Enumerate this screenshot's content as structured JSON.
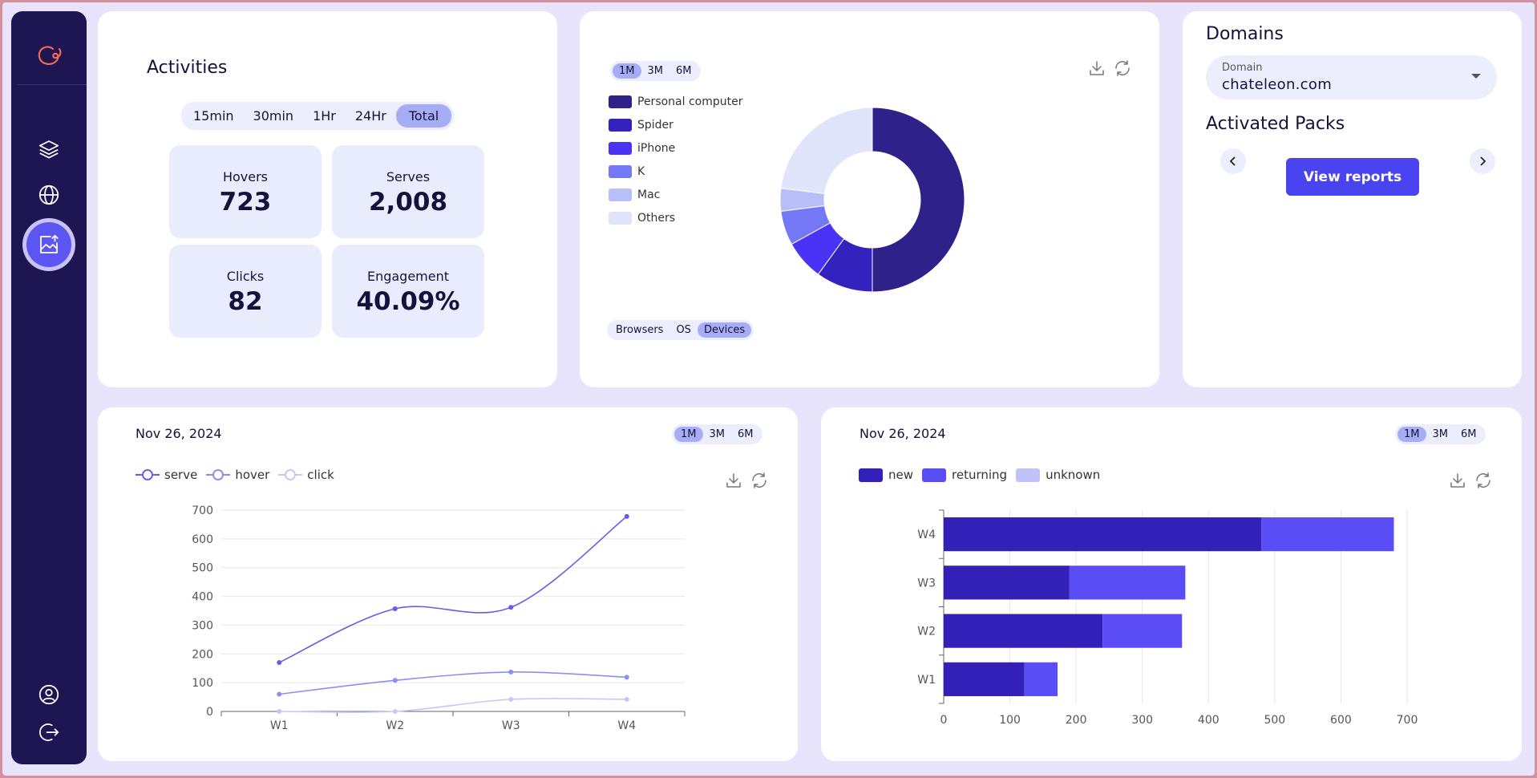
{
  "sidebar": {
    "nav": [
      {
        "icon": "layers-icon"
      },
      {
        "icon": "globe-icon"
      },
      {
        "icon": "image-upload-icon",
        "active": true
      }
    ],
    "bottom": [
      {
        "icon": "user-circle-icon"
      },
      {
        "icon": "logout-icon"
      }
    ]
  },
  "activities": {
    "title": "Activities",
    "ranges": [
      "15min",
      "30min",
      "1Hr",
      "24Hr",
      "Total"
    ],
    "active_range": "Total",
    "stats": [
      {
        "label": "Hovers",
        "value": "723"
      },
      {
        "label": "Serves",
        "value": "2,008"
      },
      {
        "label": "Clicks",
        "value": "82"
      },
      {
        "label": "Engagement",
        "value": "40.09%"
      }
    ]
  },
  "devices": {
    "ranges": [
      "1M",
      "3M",
      "6M"
    ],
    "active_range": "1M",
    "tabs": [
      "Browsers",
      "OS",
      "Devices"
    ],
    "active_tab": "Devices"
  },
  "domains": {
    "title": "Domains",
    "field_label": "Domain",
    "field_value": "chateleon.com",
    "packs_title": "Activated Packs",
    "view_reports": "View reports"
  },
  "line_panel": {
    "date": "Nov 26, 2024",
    "ranges": [
      "1M",
      "3M",
      "6M"
    ],
    "active_range": "1M"
  },
  "bar_panel": {
    "date": "Nov 26, 2024",
    "ranges": [
      "1M",
      "3M",
      "6M"
    ],
    "active_range": "1M"
  },
  "colors": {
    "personal_computer": "#2e2189",
    "spider": "#3422be",
    "iphone": "#4b33f5",
    "k": "#7478f6",
    "mac": "#b7bff8",
    "others": "#e0e5fc",
    "serve": "#6a5ae8",
    "hover": "#8a90f2",
    "click": "#c4c8f8",
    "new": "#3320b8",
    "returning": "#5a4df5",
    "unknown": "#bfc3f8"
  },
  "chart_data": [
    {
      "type": "pie",
      "variant": "donut",
      "labels": [
        "Personal computer",
        "Spider",
        "iPhone",
        "K",
        "Mac",
        "Others"
      ],
      "values": [
        50,
        10,
        7,
        6,
        4,
        23
      ],
      "legend_position": "left"
    },
    {
      "type": "line",
      "categories": [
        "W1",
        "W2",
        "W3",
        "W4"
      ],
      "series": [
        {
          "name": "serve",
          "values": [
            170,
            357,
            362,
            678
          ]
        },
        {
          "name": "hover",
          "values": [
            60,
            108,
            137,
            119
          ]
        },
        {
          "name": "click",
          "values": [
            0,
            0,
            42,
            42
          ]
        }
      ],
      "ylim": [
        0,
        700
      ],
      "yticks": [
        0,
        100,
        200,
        300,
        400,
        500,
        600,
        700
      ],
      "grid": true,
      "legend_position": "top-left"
    },
    {
      "type": "bar",
      "orientation": "horizontal",
      "stacked": true,
      "categories": [
        "W1",
        "W2",
        "W3",
        "W4"
      ],
      "series": [
        {
          "name": "new",
          "values": [
            122,
            240,
            190,
            480
          ]
        },
        {
          "name": "returning",
          "values": [
            50,
            120,
            175,
            200
          ]
        },
        {
          "name": "unknown",
          "values": [
            0,
            0,
            0,
            0
          ]
        }
      ],
      "xlim": [
        0,
        700
      ],
      "xticks": [
        0,
        100,
        200,
        300,
        400,
        500,
        600,
        700
      ],
      "grid": true,
      "legend_position": "top-left"
    }
  ]
}
